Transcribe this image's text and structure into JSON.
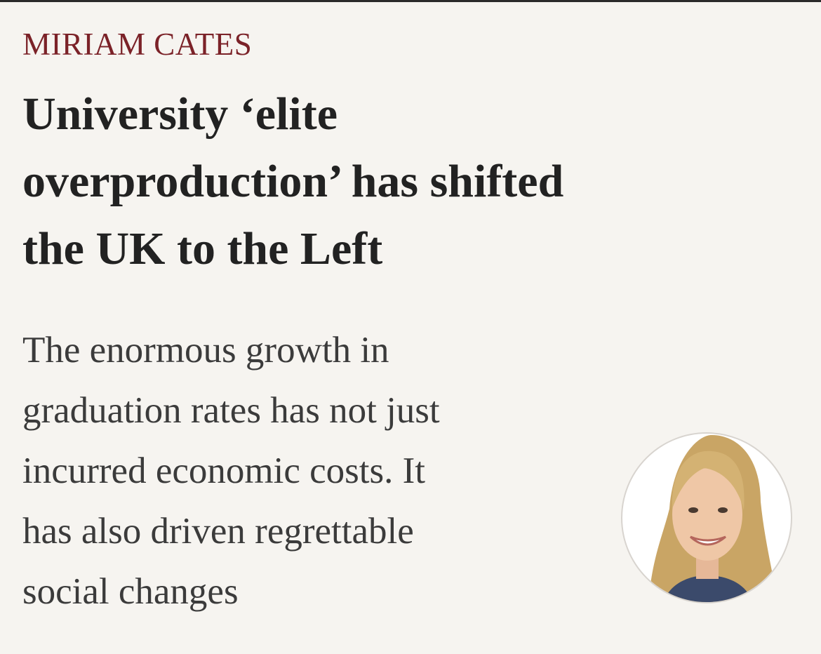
{
  "author": "MIRIAM CATES",
  "headline_lines": [
    "University ‘elite",
    "overproduction’ has shifted",
    "the UK to the Left"
  ],
  "standfirst_lines": [
    "The enormous growth in",
    "graduation rates has not just",
    "incurred economic costs. It",
    "has also driven regrettable",
    "social changes"
  ]
}
